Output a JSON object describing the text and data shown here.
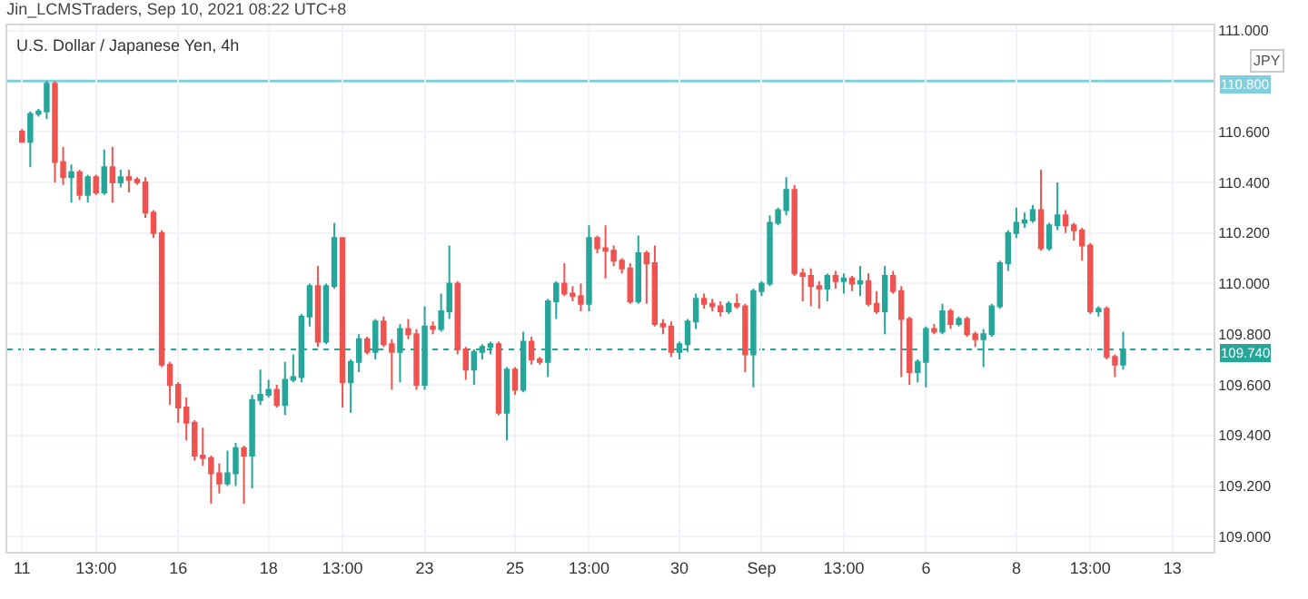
{
  "chart_data": {
    "type": "candlestick",
    "title": "Jin_LCMSTraders, Sep 10, 2021 08:22 UTC+8",
    "subtitle": "U.S. Dollar / Japanese Yen, 4h",
    "ylabel": "JPY",
    "categories": [
      "11",
      null,
      null,
      null,
      null,
      null,
      null,
      null,
      null,
      "13:00",
      null,
      null,
      null,
      null,
      null,
      null,
      null,
      null,
      null,
      "16",
      null,
      null,
      null,
      null,
      null,
      null,
      null,
      null,
      null,
      null,
      "18",
      null,
      null,
      null,
      null,
      null,
      null,
      null,
      null,
      "13:00",
      null,
      null,
      null,
      null,
      null,
      null,
      null,
      null,
      null,
      "23",
      null,
      null,
      null,
      null,
      null,
      null,
      null,
      null,
      null,
      null,
      "25",
      null,
      null,
      null,
      null,
      null,
      null,
      null,
      null,
      "13:00",
      null,
      null,
      null,
      null,
      null,
      null,
      null,
      null,
      null,
      null,
      "30",
      null,
      null,
      null,
      null,
      null,
      null,
      null,
      null,
      null,
      "Sep",
      null,
      null,
      null,
      null,
      null,
      null,
      null,
      null,
      null,
      "13:00",
      null,
      null,
      null,
      null,
      null,
      null,
      null,
      null,
      null,
      "6",
      null,
      null,
      null,
      null,
      null,
      null,
      null,
      null,
      null,
      null,
      "8",
      null,
      null,
      null,
      null,
      null,
      null,
      null,
      null,
      "13:00",
      null,
      null,
      null,
      null,
      null,
      null,
      null,
      null,
      null,
      "13"
    ],
    "ohlc": [
      [
        110.6,
        110.61,
        110.56,
        110.56
      ],
      [
        110.56,
        110.68,
        110.46,
        110.67
      ],
      [
        110.67,
        110.69,
        110.66,
        110.68
      ],
      [
        110.68,
        110.8,
        110.65,
        110.79
      ],
      [
        110.79,
        110.8,
        110.4,
        110.48
      ],
      [
        110.48,
        110.54,
        110.39,
        110.42
      ],
      [
        110.42,
        110.47,
        110.32,
        110.44
      ],
      [
        110.44,
        110.45,
        110.33,
        110.35
      ],
      [
        110.35,
        110.43,
        110.32,
        110.42
      ],
      [
        110.42,
        110.43,
        110.35,
        110.36
      ],
      [
        110.36,
        110.53,
        110.35,
        110.46
      ],
      [
        110.46,
        110.54,
        110.32,
        110.4
      ],
      [
        110.4,
        110.45,
        110.38,
        110.42
      ],
      [
        110.42,
        110.45,
        110.36,
        110.41
      ],
      [
        110.41,
        110.42,
        110.39,
        110.4
      ],
      [
        110.4,
        110.42,
        110.26,
        110.28
      ],
      [
        110.28,
        110.29,
        110.18,
        110.2
      ],
      [
        110.2,
        110.21,
        109.67,
        109.68
      ],
      [
        109.68,
        109.69,
        109.52,
        109.6
      ],
      [
        109.6,
        109.61,
        109.45,
        109.51
      ],
      [
        109.51,
        109.55,
        109.38,
        109.45
      ],
      [
        109.45,
        109.46,
        109.3,
        109.32
      ],
      [
        109.32,
        109.43,
        109.28,
        109.31
      ],
      [
        109.31,
        109.32,
        109.13,
        109.25
      ],
      [
        109.25,
        109.29,
        109.17,
        109.21
      ],
      [
        109.21,
        109.34,
        109.2,
        109.25
      ],
      [
        109.25,
        109.37,
        109.2,
        109.35
      ],
      [
        109.35,
        109.36,
        109.13,
        109.32
      ],
      [
        109.32,
        109.56,
        109.19,
        109.54
      ],
      [
        109.54,
        109.66,
        109.52,
        109.56
      ],
      [
        109.56,
        109.62,
        109.55,
        109.58
      ],
      [
        109.58,
        109.6,
        109.51,
        109.52
      ],
      [
        109.52,
        109.69,
        109.48,
        109.62
      ],
      [
        109.62,
        109.72,
        109.61,
        109.63
      ],
      [
        109.63,
        109.88,
        109.61,
        109.87
      ],
      [
        109.87,
        110.0,
        109.83,
        109.99
      ],
      [
        109.99,
        110.07,
        109.75,
        109.77
      ],
      [
        109.77,
        110.0,
        109.76,
        109.99
      ],
      [
        109.99,
        110.24,
        109.98,
        110.18
      ],
      [
        110.18,
        110.18,
        109.51,
        109.61
      ],
      [
        109.61,
        109.7,
        109.49,
        109.69
      ],
      [
        109.69,
        109.8,
        109.65,
        109.78
      ],
      [
        109.78,
        109.79,
        109.72,
        109.73
      ],
      [
        109.73,
        109.86,
        109.7,
        109.85
      ],
      [
        109.85,
        109.87,
        109.75,
        109.76
      ],
      [
        109.76,
        109.78,
        109.58,
        109.73
      ],
      [
        109.73,
        109.84,
        109.61,
        109.82
      ],
      [
        109.82,
        109.86,
        109.78,
        109.8
      ],
      [
        109.8,
        109.82,
        109.58,
        109.6
      ],
      [
        109.6,
        109.91,
        109.58,
        109.83
      ],
      [
        109.83,
        109.85,
        109.8,
        109.82
      ],
      [
        109.82,
        109.96,
        109.81,
        109.89
      ],
      [
        109.89,
        110.15,
        109.86,
        110.0
      ],
      [
        110.0,
        110.01,
        109.72,
        109.74
      ],
      [
        109.74,
        109.75,
        109.62,
        109.66
      ],
      [
        109.66,
        109.74,
        109.6,
        109.73
      ],
      [
        109.73,
        109.76,
        109.7,
        109.75
      ],
      [
        109.75,
        109.77,
        109.72,
        109.76
      ],
      [
        109.76,
        109.77,
        109.48,
        109.49
      ],
      [
        109.49,
        109.67,
        109.38,
        109.66
      ],
      [
        109.66,
        109.67,
        109.56,
        109.58
      ],
      [
        109.58,
        109.81,
        109.57,
        109.77
      ],
      [
        109.77,
        109.79,
        109.68,
        109.7
      ],
      [
        109.7,
        109.71,
        109.68,
        109.69
      ],
      [
        109.69,
        109.94,
        109.63,
        109.93
      ],
      [
        109.93,
        110.01,
        109.86,
        110.0
      ],
      [
        110.0,
        110.08,
        109.95,
        109.96
      ],
      [
        109.96,
        109.99,
        109.93,
        109.95
      ],
      [
        109.95,
        110.0,
        109.89,
        109.92
      ],
      [
        109.92,
        110.23,
        109.89,
        110.18
      ],
      [
        110.18,
        110.19,
        110.12,
        110.14
      ],
      [
        110.14,
        110.23,
        110.02,
        110.13
      ],
      [
        110.13,
        110.15,
        110.07,
        110.09
      ],
      [
        110.09,
        110.1,
        110.04,
        110.06
      ],
      [
        110.06,
        110.08,
        109.92,
        109.93
      ],
      [
        109.93,
        110.19,
        109.92,
        110.12
      ],
      [
        110.12,
        110.13,
        109.92,
        110.08
      ],
      [
        110.08,
        110.15,
        109.83,
        109.84
      ],
      [
        109.84,
        109.86,
        109.8,
        109.83
      ],
      [
        109.83,
        109.85,
        109.71,
        109.73
      ],
      [
        109.73,
        109.77,
        109.7,
        109.76
      ],
      [
        109.76,
        109.86,
        109.73,
        109.85
      ],
      [
        109.85,
        109.96,
        109.82,
        109.94
      ],
      [
        109.94,
        109.96,
        109.9,
        109.92
      ],
      [
        109.92,
        109.94,
        109.89,
        109.91
      ],
      [
        109.91,
        109.93,
        109.87,
        109.89
      ],
      [
        109.89,
        109.93,
        109.88,
        109.92
      ],
      [
        109.92,
        109.96,
        109.9,
        109.91
      ],
      [
        109.91,
        109.92,
        109.65,
        109.72
      ],
      [
        109.72,
        109.98,
        109.59,
        109.97
      ],
      [
        109.97,
        110.01,
        109.95,
        110.0
      ],
      [
        110.0,
        110.27,
        109.99,
        110.24
      ],
      [
        110.24,
        110.3,
        110.23,
        110.29
      ],
      [
        110.29,
        110.42,
        110.27,
        110.37
      ],
      [
        110.37,
        110.39,
        110.03,
        110.04
      ],
      [
        110.04,
        110.06,
        109.93,
        110.03
      ],
      [
        110.03,
        110.06,
        109.91,
        109.99
      ],
      [
        109.99,
        110.01,
        109.9,
        109.98
      ],
      [
        109.98,
        110.04,
        109.93,
        110.03
      ],
      [
        110.03,
        110.05,
        109.98,
        110.01
      ],
      [
        110.01,
        110.04,
        109.96,
        110.02
      ],
      [
        110.02,
        110.03,
        109.97,
        110.0
      ],
      [
        110.0,
        110.07,
        109.95,
        110.01
      ],
      [
        110.01,
        110.04,
        109.91,
        109.92
      ],
      [
        109.92,
        109.97,
        109.88,
        109.89
      ],
      [
        109.89,
        110.07,
        109.8,
        110.03
      ],
      [
        110.03,
        110.05,
        109.96,
        109.97
      ],
      [
        109.97,
        109.99,
        109.63,
        109.86
      ],
      [
        109.86,
        109.87,
        109.6,
        109.65
      ],
      [
        109.65,
        109.7,
        109.61,
        109.69
      ],
      [
        109.69,
        109.83,
        109.59,
        109.82
      ],
      [
        109.82,
        109.84,
        109.8,
        109.81
      ],
      [
        109.81,
        109.92,
        109.8,
        109.89
      ],
      [
        109.89,
        109.9,
        109.82,
        109.84
      ],
      [
        109.84,
        109.87,
        109.83,
        109.86
      ],
      [
        109.86,
        109.87,
        109.79,
        109.8
      ],
      [
        109.8,
        109.81,
        109.75,
        109.78
      ],
      [
        109.78,
        109.82,
        109.67,
        109.8
      ],
      [
        109.8,
        109.92,
        109.79,
        109.91
      ],
      [
        109.91,
        110.09,
        109.9,
        110.08
      ],
      [
        110.08,
        110.21,
        110.05,
        110.2
      ],
      [
        110.2,
        110.3,
        110.18,
        110.24
      ],
      [
        110.24,
        110.28,
        110.22,
        110.25
      ],
      [
        110.25,
        110.31,
        110.24,
        110.29
      ],
      [
        110.29,
        110.45,
        110.13,
        110.14
      ],
      [
        110.14,
        110.24,
        110.13,
        110.23
      ],
      [
        110.23,
        110.4,
        110.21,
        110.27
      ],
      [
        110.27,
        110.29,
        110.2,
        110.23
      ],
      [
        110.23,
        110.24,
        110.17,
        110.21
      ],
      [
        110.21,
        110.22,
        110.09,
        110.15
      ],
      [
        110.15,
        110.16,
        109.88,
        109.89
      ],
      [
        109.89,
        109.91,
        109.87,
        109.9
      ],
      [
        109.9,
        109.91,
        109.7,
        109.71
      ],
      [
        109.71,
        109.72,
        109.63,
        109.68
      ],
      [
        109.68,
        109.81,
        109.66,
        109.74
      ],
      null,
      null,
      null,
      null,
      null,
      null
    ],
    "colors": [
      "#ef5350",
      "#26a69a",
      "#26a69a",
      "#26a69a",
      "#ef5350",
      "#ef5350",
      "#26a69a",
      "#ef5350",
      "#26a69a",
      "#ef5350",
      "#26a69a",
      "#ef5350",
      "#26a69a",
      "#ef5350",
      "#ef5350",
      "#ef5350",
      "#ef5350",
      "#ef5350",
      "#ef5350",
      "#ef5350",
      "#ef5350",
      "#ef5350",
      "#ef5350",
      "#ef5350",
      "#ef5350",
      "#26a69a",
      "#26a69a",
      "#ef5350",
      "#26a69a",
      "#26a69a",
      "#26a69a",
      "#ef5350",
      "#26a69a",
      "#26a69a",
      "#26a69a",
      "#26a69a",
      "#ef5350",
      "#26a69a",
      "#26a69a",
      "#ef5350",
      "#26a69a",
      "#26a69a",
      "#ef5350",
      "#26a69a",
      "#ef5350",
      "#ef5350",
      "#26a69a",
      "#ef5350",
      "#ef5350",
      "#26a69a",
      "#ef5350",
      "#26a69a",
      "#26a69a",
      "#ef5350",
      "#ef5350",
      "#26a69a",
      "#26a69a",
      "#26a69a",
      "#ef5350",
      "#26a69a",
      "#ef5350",
      "#26a69a",
      "#ef5350",
      "#ef5350",
      "#26a69a",
      "#26a69a",
      "#ef5350",
      "#ef5350",
      "#ef5350",
      "#26a69a",
      "#ef5350",
      "#ef5350",
      "#ef5350",
      "#ef5350",
      "#ef5350",
      "#26a69a",
      "#ef5350",
      "#ef5350",
      "#ef5350",
      "#ef5350",
      "#26a69a",
      "#26a69a",
      "#26a69a",
      "#ef5350",
      "#ef5350",
      "#ef5350",
      "#26a69a",
      "#ef5350",
      "#ef5350",
      "#26a69a",
      "#26a69a",
      "#26a69a",
      "#26a69a",
      "#26a69a",
      "#ef5350",
      "#ef5350",
      "#ef5350",
      "#ef5350",
      "#26a69a",
      "#ef5350",
      "#26a69a",
      "#ef5350",
      "#26a69a",
      "#ef5350",
      "#ef5350",
      "#26a69a",
      "#ef5350",
      "#ef5350",
      "#ef5350",
      "#26a69a",
      "#26a69a",
      "#ef5350",
      "#26a69a",
      "#ef5350",
      "#26a69a",
      "#ef5350",
      "#ef5350",
      "#26a69a",
      "#26a69a",
      "#26a69a",
      "#26a69a",
      "#26a69a",
      "#26a69a",
      "#26a69a",
      "#ef5350",
      "#26a69a",
      "#26a69a",
      "#ef5350",
      "#ef5350",
      "#ef5350",
      "#ef5350",
      "#26a69a",
      "#ef5350",
      "#ef5350",
      "#26a69a",
      null,
      null,
      null,
      null,
      null,
      null
    ],
    "ylim": [
      108.94,
      111.02
    ],
    "yticks": [
      {
        "value": 109.0,
        "label": "109.000"
      },
      {
        "value": 109.2,
        "label": "109.200"
      },
      {
        "value": 109.4,
        "label": "109.400"
      },
      {
        "value": 109.6,
        "label": "109.600"
      },
      {
        "value": 109.8,
        "label": "109.800"
      },
      {
        "value": 110.0,
        "label": "110.000"
      },
      {
        "value": 110.2,
        "label": "110.200"
      },
      {
        "value": 110.4,
        "label": "110.400"
      },
      {
        "value": 110.6,
        "label": "110.600"
      },
      {
        "value": 111.0,
        "label": "111.000"
      }
    ],
    "ref_lines": [
      {
        "axis": "y",
        "value": 110.8,
        "label": "110.800",
        "color": "#80cfdc",
        "line_style": "solid"
      },
      {
        "axis": "y",
        "value": 109.74,
        "label": "109.740",
        "color": "#26a69a",
        "line_style": "dotted"
      }
    ],
    "grid": true,
    "legend": false
  }
}
